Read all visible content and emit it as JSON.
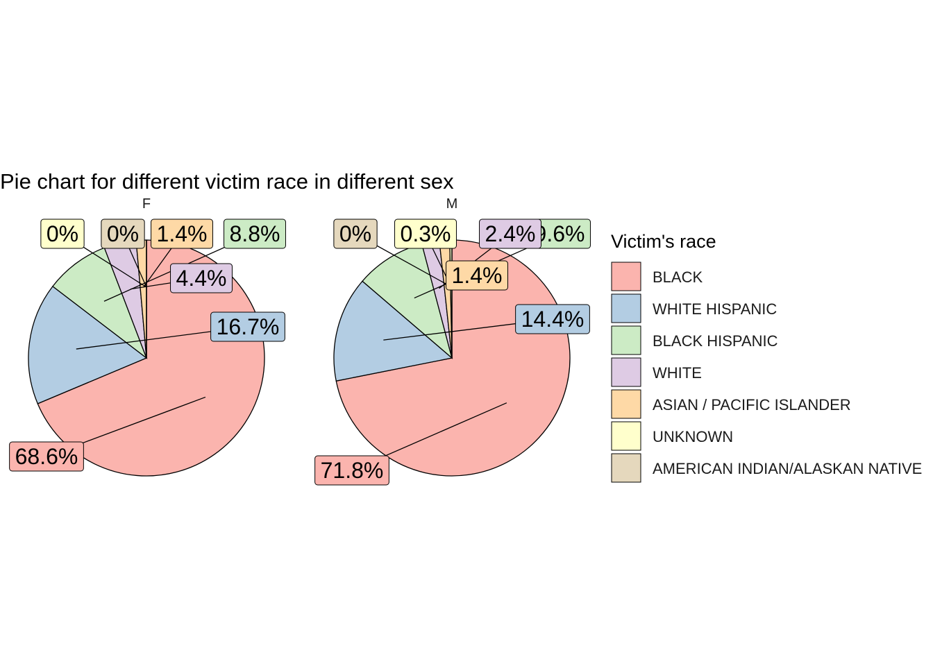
{
  "chart_data": {
    "type": "pie",
    "title": "Pie chart for different victim race in different sex",
    "legend_title": "Victim's race",
    "legend_position": "right",
    "categories": [
      "BLACK",
      "WHITE HISPANIC",
      "BLACK HISPANIC",
      "WHITE",
      "ASIAN / PACIFIC ISLANDER",
      "UNKNOWN",
      "AMERICAN INDIAN/ALASKAN NATIVE"
    ],
    "colors": [
      "#FBB4AE",
      "#B3CDE3",
      "#CCEBC5",
      "#DECBE4",
      "#FED9A6",
      "#FFFFCC",
      "#E5D8BD"
    ],
    "panels": [
      {
        "facet": "F",
        "values": [
          68.6,
          16.7,
          8.8,
          4.4,
          1.4,
          0.0,
          0.0
        ],
        "labels": [
          "68.6%",
          "16.7%",
          "8.8%",
          "4.4%",
          "1.4%",
          "0%",
          "0%"
        ]
      },
      {
        "facet": "M",
        "values": [
          71.8,
          14.4,
          9.6,
          2.4,
          1.4,
          0.3,
          0.0
        ],
        "labels": [
          "71.8%",
          "14.4%",
          "9.6%",
          "2.4%",
          "1.4%",
          "0.3%",
          "0%"
        ]
      }
    ]
  }
}
